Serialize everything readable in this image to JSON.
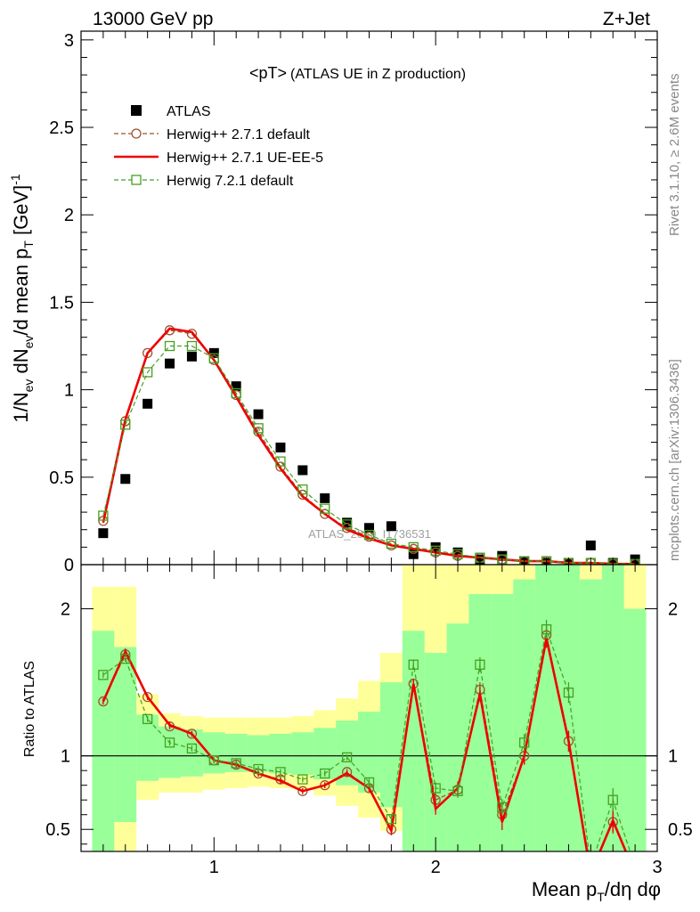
{
  "header": {
    "left": "13000 GeV pp",
    "right": "Z+Jet"
  },
  "side": {
    "rivet": "Rivet 3.1.10, ≥ 2.6M events",
    "mcplots": "mcplots.cern.ch [arXiv:1306.3436]"
  },
  "chart_data": [
    {
      "type": "scatter",
      "title": "<pT>",
      "subtitle": "(ATLAS UE in Z production)",
      "ylabel": "1/N_ev dN_ev/d mean p_T [GeV]^-1",
      "xlim": [
        0.4,
        3.0
      ],
      "ylim": [
        0,
        3.05
      ],
      "yticks": [
        "0",
        "0.5",
        "1",
        "1.5",
        "2",
        "2.5",
        "3"
      ],
      "watermark": "ATLAS_2019_I1736531",
      "x": [
        0.5,
        0.6,
        0.7,
        0.8,
        0.9,
        1.0,
        1.1,
        1.2,
        1.3,
        1.4,
        1.5,
        1.6,
        1.7,
        1.8,
        1.9,
        2.0,
        2.1,
        2.2,
        2.3,
        2.4,
        2.5,
        2.6,
        2.7,
        2.8,
        2.9
      ],
      "series": [
        {
          "name": "ATLAS",
          "color": "#000000",
          "marker": "filled-square",
          "values": [
            0.18,
            0.49,
            0.92,
            1.15,
            1.19,
            1.21,
            1.02,
            0.86,
            0.67,
            0.54,
            0.38,
            0.24,
            0.21,
            0.22,
            0.06,
            0.1,
            0.07,
            0.03,
            0.05,
            0.02,
            0.01,
            0.01,
            0.11,
            0.01,
            0.03
          ]
        },
        {
          "name": "Herwig++ 2.7.1 default",
          "color": "#a0522d",
          "marker": "open-circle",
          "values": [
            0.25,
            0.82,
            1.21,
            1.34,
            1.32,
            1.17,
            0.97,
            0.76,
            0.56,
            0.4,
            0.29,
            0.21,
            0.16,
            0.11,
            0.09,
            0.07,
            0.05,
            0.04,
            0.03,
            0.02,
            0.02,
            0.01,
            0.01,
            0.005,
            0.004
          ]
        },
        {
          "name": "Herwig++ 2.7.1 UE-EE-5",
          "color": "#ee0000",
          "marker": "line",
          "values": [
            0.24,
            0.83,
            1.21,
            1.35,
            1.33,
            1.17,
            0.96,
            0.74,
            0.55,
            0.39,
            0.29,
            0.2,
            0.15,
            0.11,
            0.09,
            0.07,
            0.05,
            0.04,
            0.03,
            0.02,
            0.02,
            0.01,
            0.01,
            0.005,
            0.004
          ]
        },
        {
          "name": "Herwig 7.2.1 default",
          "color": "#44a020",
          "marker": "open-square",
          "values": [
            0.28,
            0.8,
            1.1,
            1.25,
            1.25,
            1.18,
            0.98,
            0.78,
            0.59,
            0.43,
            0.32,
            0.23,
            0.17,
            0.12,
            0.1,
            0.08,
            0.06,
            0.04,
            0.03,
            0.02,
            0.02,
            0.01,
            0.01,
            0.005,
            0.004
          ]
        }
      ]
    },
    {
      "type": "line",
      "ylabel": "Ratio to ATLAS",
      "xlabel": "Mean p_T/dη dφ",
      "xlim": [
        0.4,
        3.0
      ],
      "ylim": [
        0.35,
        2.3
      ],
      "xticks": [
        "1",
        "2",
        "3"
      ],
      "yticks": [
        "0.5",
        "1",
        "2"
      ],
      "x": [
        0.5,
        0.6,
        0.7,
        0.8,
        0.9,
        1.0,
        1.1,
        1.2,
        1.3,
        1.4,
        1.5,
        1.6,
        1.7,
        1.8,
        1.9,
        2.0,
        2.1,
        2.2,
        2.3,
        2.4,
        2.5,
        2.6,
        2.7,
        2.8,
        2.9
      ],
      "band_green": [
        [
          0.35,
          1.85
        ],
        [
          0.55,
          1.74
        ],
        [
          0.83,
          1.28
        ],
        [
          0.85,
          1.2
        ],
        [
          0.86,
          1.18
        ],
        [
          0.88,
          1.16
        ],
        [
          0.89,
          1.15
        ],
        [
          0.89,
          1.14
        ],
        [
          0.88,
          1.15
        ],
        [
          0.87,
          1.16
        ],
        [
          0.84,
          1.19
        ],
        [
          0.8,
          1.24
        ],
        [
          0.75,
          1.3
        ],
        [
          0.65,
          1.5
        ],
        [
          0.35,
          1.85
        ],
        [
          0.35,
          1.7
        ],
        [
          0.35,
          1.9
        ],
        [
          0.35,
          2.1
        ],
        [
          0.35,
          2.1
        ],
        [
          0.35,
          2.2
        ],
        [
          0.35,
          2.3
        ],
        [
          0.35,
          2.3
        ],
        [
          0.35,
          2.2
        ],
        [
          0.35,
          2.3
        ],
        [
          0.35,
          2.0
        ]
      ],
      "band_yellow": [
        [
          0.35,
          2.15
        ],
        [
          0.35,
          2.15
        ],
        [
          0.7,
          1.42
        ],
        [
          0.75,
          1.29
        ],
        [
          0.75,
          1.27
        ],
        [
          0.77,
          1.26
        ],
        [
          0.78,
          1.26
        ],
        [
          0.79,
          1.26
        ],
        [
          0.78,
          1.26
        ],
        [
          0.77,
          1.27
        ],
        [
          0.73,
          1.31
        ],
        [
          0.66,
          1.39
        ],
        [
          0.58,
          1.51
        ],
        [
          0.49,
          1.7
        ],
        [
          0.35,
          2.3
        ],
        [
          0.35,
          2.3
        ],
        [
          0.35,
          2.3
        ],
        [
          0.35,
          2.3
        ],
        [
          0.35,
          2.3
        ],
        [
          0.35,
          2.3
        ],
        [
          0.35,
          2.3
        ],
        [
          0.35,
          2.3
        ],
        [
          0.35,
          2.3
        ],
        [
          0.35,
          2.3
        ],
        [
          0.35,
          2.3
        ]
      ],
      "series": [
        {
          "name": "Herwig++ 2.7.1 default",
          "color": "#a0522d",
          "values": [
            1.37,
            1.69,
            1.4,
            1.2,
            1.15,
            0.97,
            0.94,
            0.88,
            0.84,
            0.76,
            0.8,
            0.89,
            0.78,
            0.5,
            1.49,
            0.7,
            0.77,
            1.45,
            0.6,
            1.0,
            1.82,
            1.1,
            0.2,
            0.55,
            0.2
          ]
        },
        {
          "name": "Herwig++ 2.7.1 UE-EE-5",
          "color": "#ee0000",
          "values": [
            1.37,
            1.71,
            1.4,
            1.21,
            1.15,
            0.97,
            0.94,
            0.88,
            0.83,
            0.76,
            0.8,
            0.88,
            0.78,
            0.49,
            1.49,
            0.64,
            0.78,
            1.42,
            0.55,
            1.0,
            1.8,
            1.1,
            0.2,
            0.56,
            0.2
          ]
        },
        {
          "name": "Herwig 7.2.1 default",
          "color": "#44a020",
          "values": [
            1.55,
            1.66,
            1.25,
            1.09,
            1.05,
            0.97,
            0.95,
            0.91,
            0.89,
            0.84,
            0.88,
            0.99,
            0.82,
            0.57,
            1.62,
            0.78,
            0.76,
            1.62,
            0.65,
            1.09,
            1.86,
            1.43,
            0.25,
            0.7,
            0.25
          ]
        }
      ]
    }
  ]
}
